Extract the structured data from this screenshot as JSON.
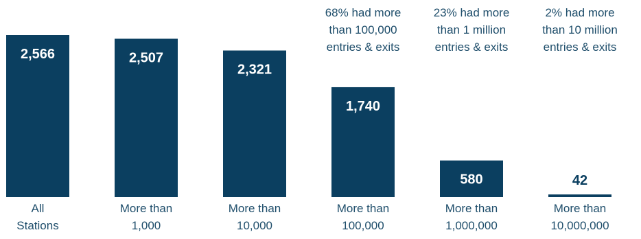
{
  "colors": {
    "bar": "#0b3f60",
    "annotation_text": "#1f4e6b",
    "value_inside": "#ffffff",
    "value_outside": "#0b3f60"
  },
  "chart_data": {
    "type": "bar",
    "title": "",
    "xlabel": "",
    "ylabel": "",
    "ylim": [
      0,
      2800
    ],
    "grid": false,
    "categories": [
      [
        "All",
        "Stations"
      ],
      [
        "More than",
        "1,000"
      ],
      [
        "More than",
        "10,000"
      ],
      [
        "More than",
        "100,000"
      ],
      [
        "More than",
        "1,000,000"
      ],
      [
        "More than",
        "10,000,000"
      ]
    ],
    "values": [
      2566,
      2507,
      2321,
      1740,
      580,
      42
    ],
    "value_labels": [
      "2,566",
      "2,507",
      "2,321",
      "1,740",
      "580",
      "42"
    ],
    "annotations": [
      null,
      null,
      null,
      [
        "68% had more",
        "than 100,000",
        "entries & exits"
      ],
      [
        "23% had more",
        "than 1 million",
        "entries & exits"
      ],
      [
        "2% had more",
        "than 10 million",
        "entries & exits"
      ]
    ]
  }
}
